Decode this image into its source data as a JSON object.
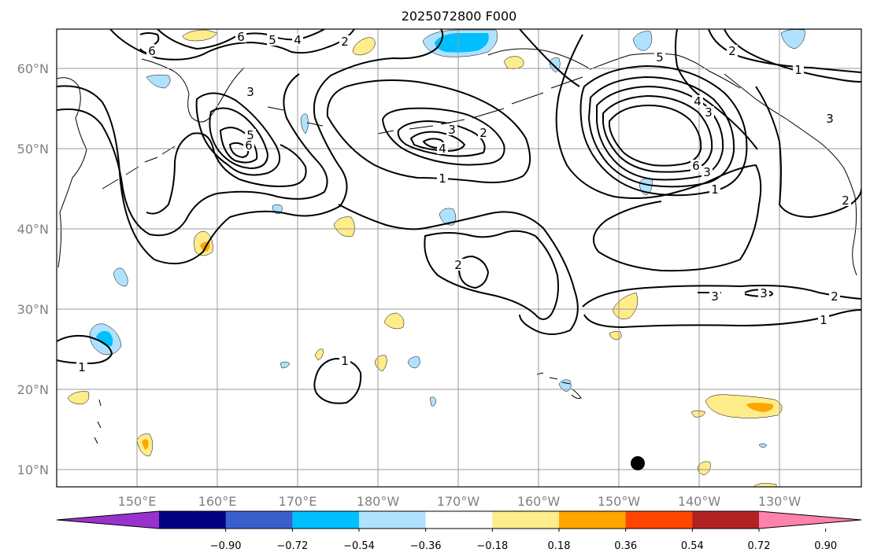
{
  "title": "2025072800 F000",
  "map": {
    "lon_labels": [
      "150°E",
      "160°E",
      "170°E",
      "180°W",
      "170°W",
      "160°W",
      "150°W",
      "140°W",
      "130°W"
    ],
    "lat_labels": [
      "60°N",
      "50°N",
      "40°N",
      "30°N",
      "20°N",
      "10°N"
    ],
    "contour_labels": [
      {
        "text": "6",
        "name": "contour-label-6-nw"
      },
      {
        "text": "6",
        "name": "contour-label-6-north"
      },
      {
        "text": "5",
        "name": "contour-label-5-north"
      },
      {
        "text": "4",
        "name": "contour-label-4-north"
      },
      {
        "text": "2",
        "name": "contour-label-2-north"
      },
      {
        "text": "3",
        "name": "contour-label-3-kamchatka"
      },
      {
        "text": "5",
        "name": "contour-label-5-kamchatka"
      },
      {
        "text": "6",
        "name": "contour-label-6-kamchatka"
      },
      {
        "text": "3",
        "name": "contour-label-3-aleutian"
      },
      {
        "text": "2",
        "name": "contour-label-2-aleutian"
      },
      {
        "text": "4",
        "name": "contour-label-4-aleutian"
      },
      {
        "text": "1",
        "name": "contour-label-1-aleutian"
      },
      {
        "text": "5",
        "name": "contour-label-5-gulf"
      },
      {
        "text": "4",
        "name": "contour-label-4-gulf"
      },
      {
        "text": "3",
        "name": "contour-label-3-gulf"
      },
      {
        "text": "6",
        "name": "contour-label-6-gulf"
      },
      {
        "text": "3",
        "name": "contour-label-3-gulf-south"
      },
      {
        "text": "1",
        "name": "contour-label-1-gulf-south"
      },
      {
        "text": "2",
        "name": "contour-label-2-alaska"
      },
      {
        "text": "1",
        "name": "contour-label-1-canada"
      },
      {
        "text": "3",
        "name": "contour-label-3-canada"
      },
      {
        "text": "2",
        "name": "contour-label-2-coast"
      },
      {
        "text": "2",
        "name": "contour-label-2-central"
      },
      {
        "text": "3",
        "name": "contour-label-3-east-a"
      },
      {
        "text": "3",
        "name": "contour-label-3-east-b"
      },
      {
        "text": "2",
        "name": "contour-label-2-east"
      },
      {
        "text": "1",
        "name": "contour-label-1-east"
      },
      {
        "text": "1",
        "name": "contour-label-1-south-central"
      },
      {
        "text": "1",
        "name": "contour-label-1-west"
      }
    ]
  },
  "colorbar": {
    "colors": [
      "#9932CC",
      "#000080",
      "#3A5FCD",
      "#00BFFF",
      "#B0E2FF",
      "#FFFFFF",
      "#FFEC8B",
      "#FFA500",
      "#FF4500",
      "#B22222",
      "#FF82AB"
    ],
    "tick_labels": [
      "−0.90",
      "−0.72",
      "−0.54",
      "−0.36",
      "−0.18",
      "0.18",
      "0.36",
      "0.54",
      "0.72",
      "0.90"
    ]
  },
  "shading_colors": {
    "pos_light": "#FFEC8B",
    "pos_mid": "#FFA500",
    "neg_light": "#B0E2FF",
    "neg_mid": "#00BFFF"
  },
  "marker": {
    "label": "storm-center",
    "color": "#000000"
  }
}
